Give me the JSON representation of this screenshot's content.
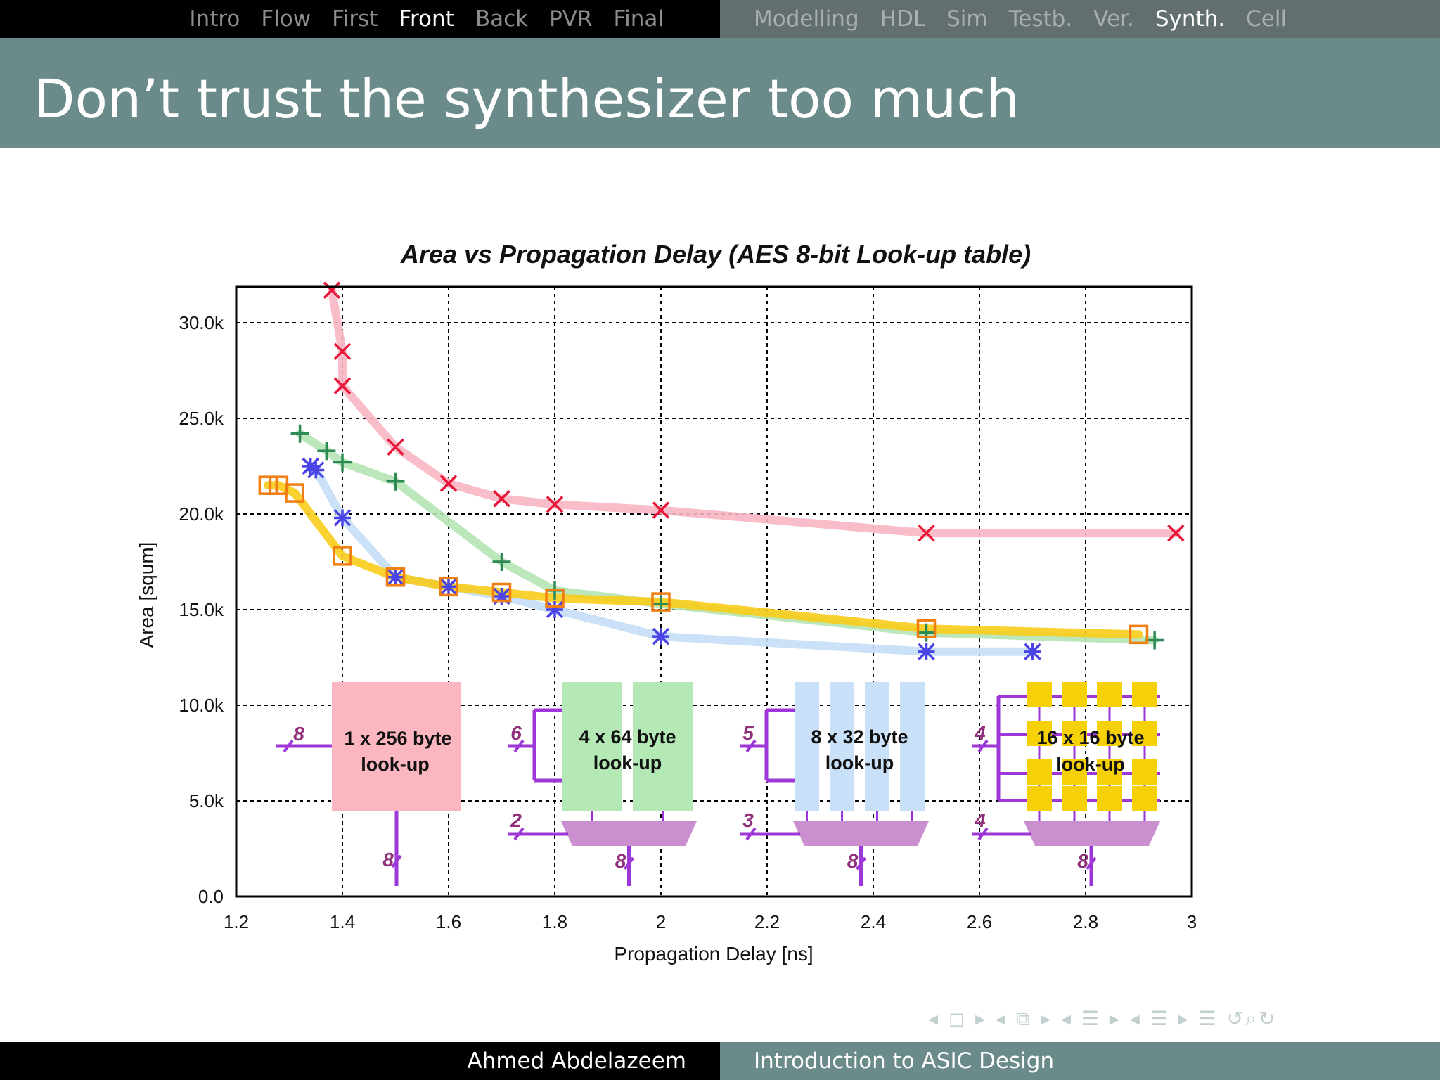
{
  "nav": {
    "left": [
      "Intro",
      "Flow",
      "First",
      "Front",
      "Back",
      "PVR",
      "Final"
    ],
    "right": [
      "Modelling",
      "HDL",
      "Sim",
      "Testb.",
      "Ver.",
      "Synth.",
      "Cell"
    ],
    "active_left": "Front",
    "active_right": "Synth."
  },
  "slide": {
    "title": "Don’t trust the synthesizer too much"
  },
  "chart_data": {
    "type": "line",
    "title": "Area vs Propagation Delay (AES 8-bit Look-up table)",
    "xlabel": "Propagation Delay [ns]",
    "ylabel": "Area [squm]",
    "xlim": [
      1.2,
      3
    ],
    "ylim": [
      0,
      32000
    ],
    "xticks": [
      1.2,
      1.4,
      1.6,
      1.8,
      2,
      2.2,
      2.4,
      2.6,
      2.8,
      3
    ],
    "xtick_labels": [
      "1.2",
      "1.4",
      "1.6",
      "1.8",
      "2",
      "2.2",
      "2.4",
      "2.6",
      "2.8",
      "3"
    ],
    "yticks": [
      0,
      5000,
      10000,
      15000,
      20000,
      25000,
      30000
    ],
    "ytick_labels": [
      "0.0",
      "5.0k",
      "10.0k",
      "15.0k",
      "20.0k",
      "25.0k",
      "30.0k"
    ],
    "grid": true,
    "series": [
      {
        "marker": "x",
        "color": "#e8173a",
        "line_color": "#f7b6c2",
        "points": [
          [
            1.38,
            31700
          ],
          [
            1.4,
            28500
          ],
          [
            1.4,
            26700
          ],
          [
            1.5,
            23500
          ],
          [
            1.6,
            21600
          ],
          [
            1.7,
            20800
          ],
          [
            1.8,
            20500
          ],
          [
            2.0,
            20200
          ],
          [
            2.5,
            19000
          ],
          [
            2.97,
            19000
          ]
        ]
      },
      {
        "marker": "plus",
        "color": "#2d8a55",
        "line_color": "#b4e4b2",
        "points": [
          [
            1.32,
            24200
          ],
          [
            1.37,
            23300
          ],
          [
            1.4,
            22700
          ],
          [
            1.5,
            21700
          ],
          [
            1.7,
            17500
          ],
          [
            1.8,
            16000
          ],
          [
            2.0,
            15300
          ],
          [
            2.5,
            13800
          ],
          [
            2.93,
            13400
          ]
        ]
      },
      {
        "marker": "star",
        "color": "#4a43e6",
        "line_color": "#c4def6",
        "points": [
          [
            1.34,
            22500
          ],
          [
            1.35,
            22300
          ],
          [
            1.4,
            19800
          ],
          [
            1.5,
            16700
          ],
          [
            1.6,
            16200
          ],
          [
            1.7,
            15700
          ],
          [
            1.8,
            15000
          ],
          [
            2.0,
            13600
          ],
          [
            2.5,
            12800
          ],
          [
            2.7,
            12800
          ]
        ]
      },
      {
        "marker": "square",
        "color": "#f07e12",
        "line_color": "#f8cc19",
        "points": [
          [
            1.26,
            21500
          ],
          [
            1.28,
            21500
          ],
          [
            1.31,
            21100
          ],
          [
            1.4,
            17800
          ],
          [
            1.5,
            16700
          ],
          [
            1.6,
            16200
          ],
          [
            1.7,
            15900
          ],
          [
            1.8,
            15600
          ],
          [
            2.0,
            15400
          ],
          [
            2.5,
            14000
          ],
          [
            2.9,
            13700
          ]
        ]
      }
    ],
    "insets": [
      {
        "label_line1": "1 x 256 byte",
        "label_line2": "look-up",
        "color": "#fbb6c0",
        "in_bits": [
          "8"
        ],
        "out_bits": "8"
      },
      {
        "label_line1": "4 x  64 byte",
        "label_line2": "look-up",
        "color": "#b4e9b5",
        "in_bits": [
          "6",
          "2"
        ],
        "out_bits": "8"
      },
      {
        "label_line1": "8 x  32 byte",
        "label_line2": "look-up",
        "color": "#c8e0f8",
        "in_bits": [
          "5",
          "3"
        ],
        "out_bits": "8"
      },
      {
        "label_line1": "16 x  16 byte",
        "label_line2": "look-up",
        "color": "#f6d10a",
        "in_bits": [
          "4",
          "4"
        ],
        "out_bits": "8"
      }
    ]
  },
  "footer": {
    "author": "Ahmed Abdelazeem",
    "course": "Introduction to ASIC Design"
  },
  "icons": {
    "nav_symbols": "◂ ◻ ▸  ◂ ⧉ ▸  ◂ ☰ ▸  ◂ ☰ ▸   ☰   ↺⌕↻"
  }
}
